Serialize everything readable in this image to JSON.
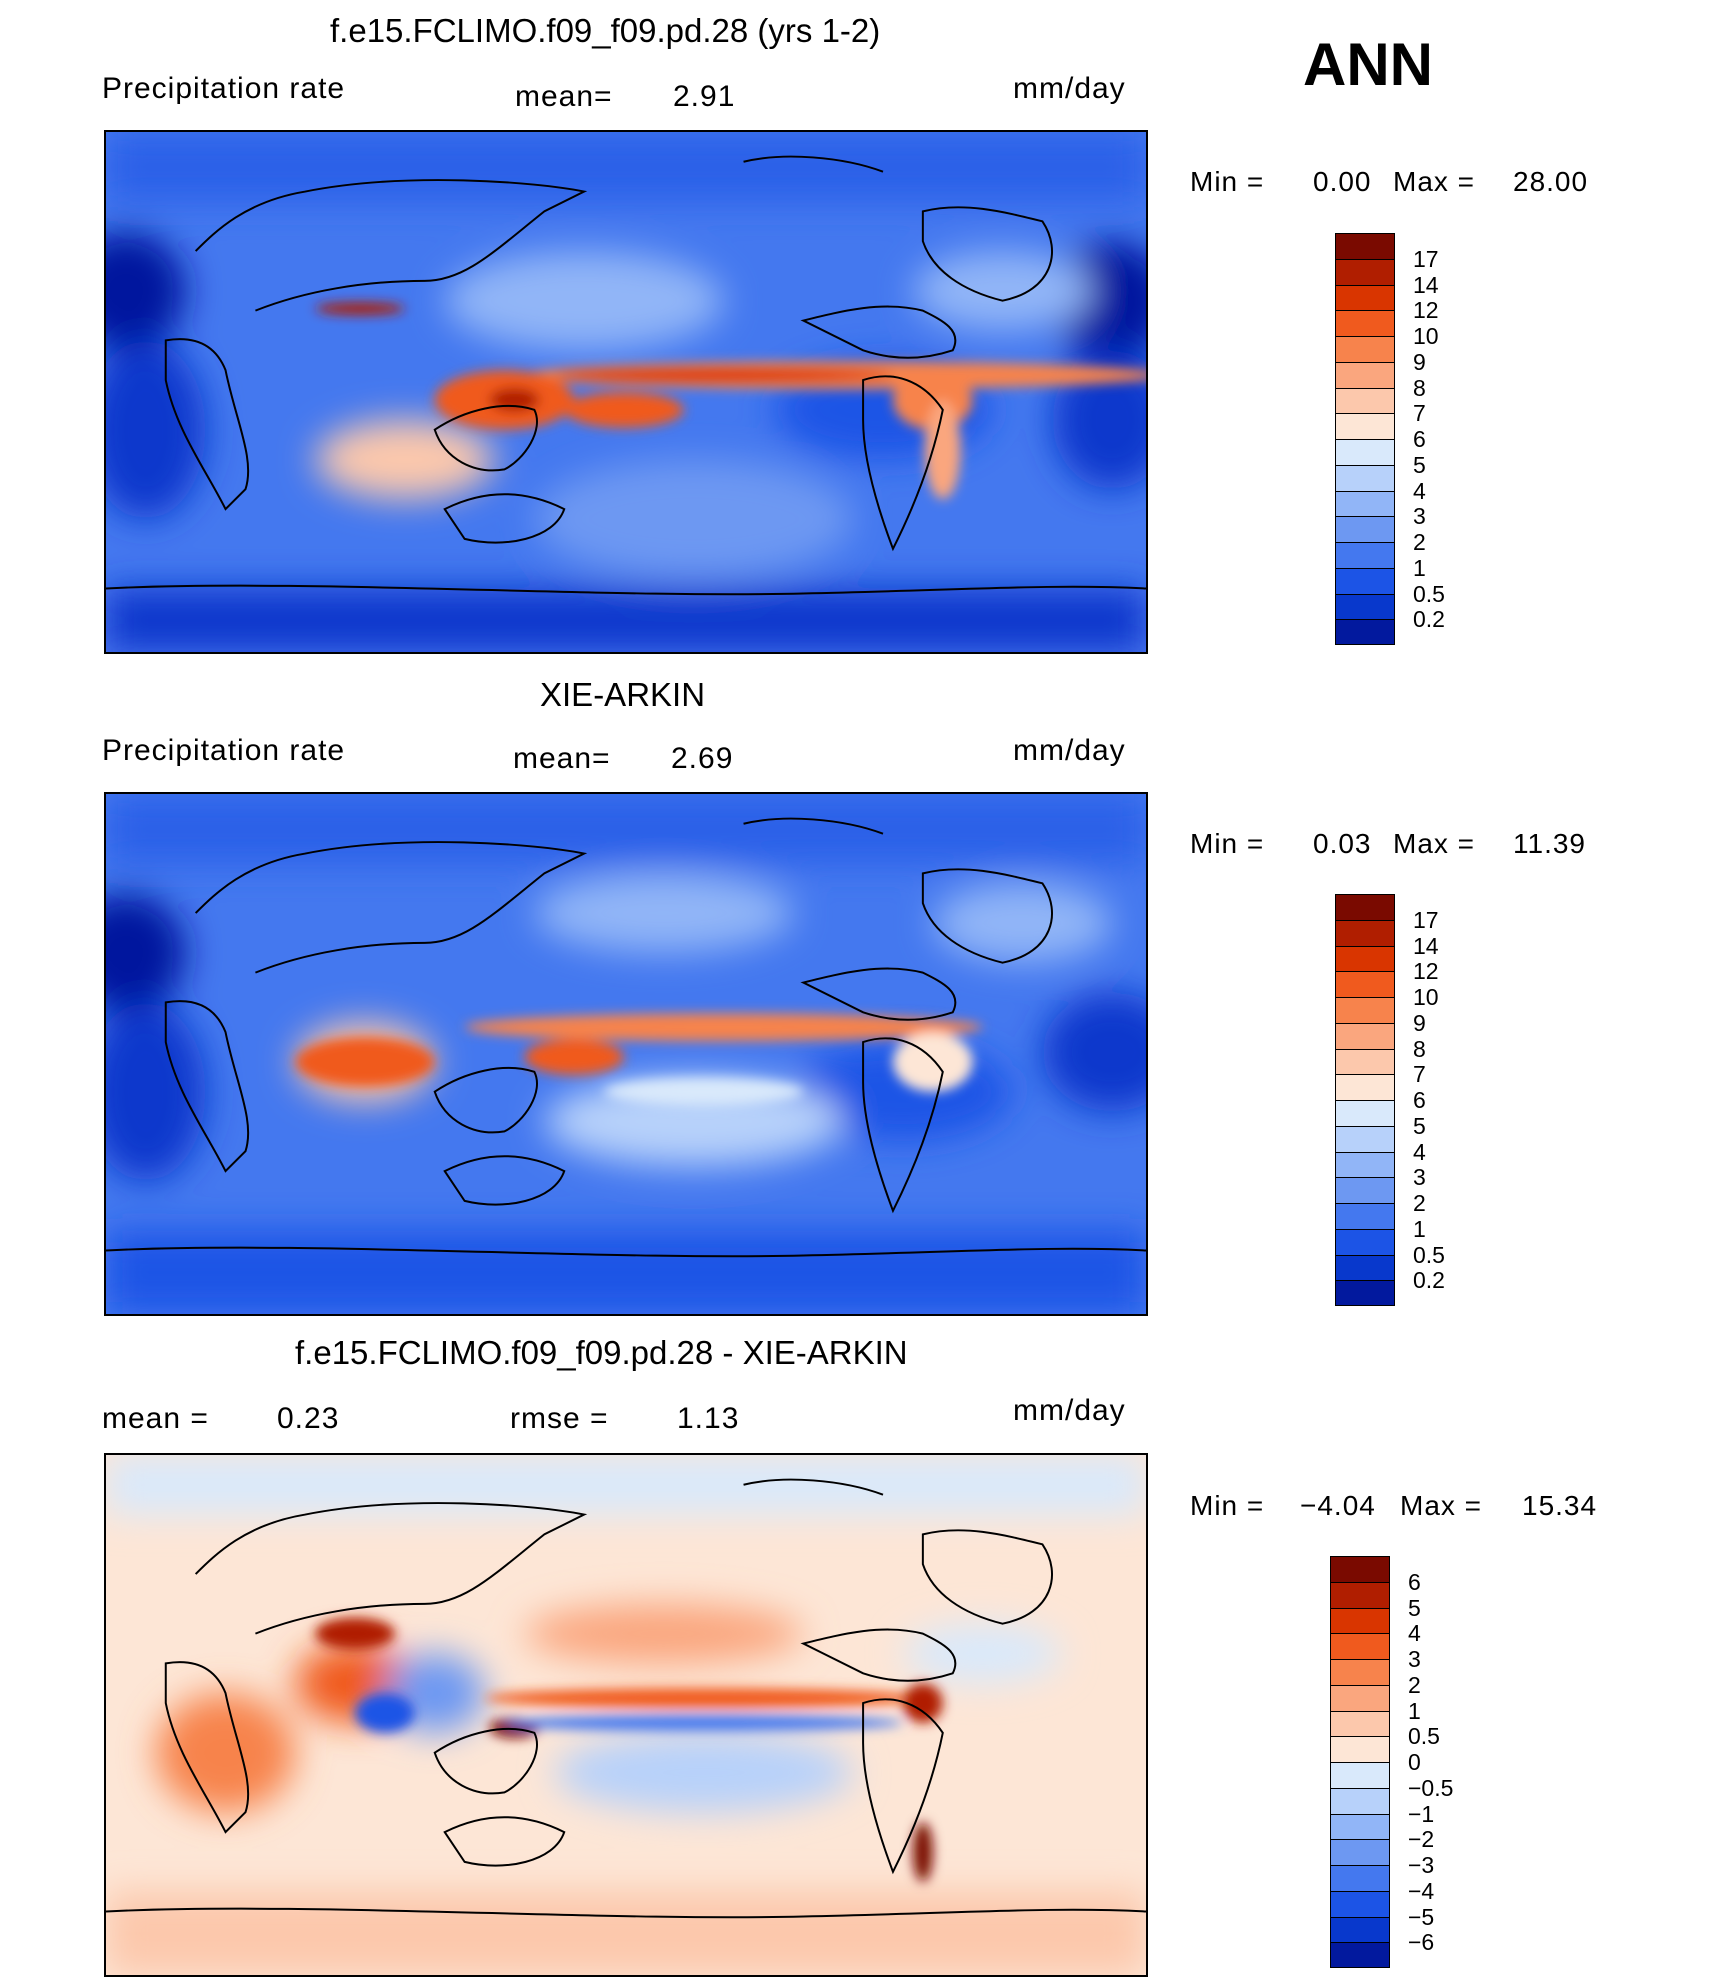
{
  "season": "ANN",
  "panels": [
    {
      "id": "model",
      "title": "f.e15.FCLIMO.f09_f09.pd.28 (yrs 1-2)",
      "left_label": "Precipitation  rate",
      "center_label": "mean=",
      "center_value": "2.91",
      "units": "mm/day",
      "min_label": "Min  =",
      "min_value": "0.00",
      "max_label": "Max  =",
      "max_value": "28.00"
    },
    {
      "id": "obs",
      "title": "XIE-ARKIN",
      "left_label": "Precipitation  rate",
      "center_label": "mean=",
      "center_value": "2.69",
      "units": "mm/day",
      "min_label": "Min  =",
      "min_value": "0.03",
      "max_label": "Max  =",
      "max_value": "11.39"
    },
    {
      "id": "diff",
      "title": "f.e15.FCLIMO.f09_f09.pd.28 - XIE-ARKIN",
      "left_label": "mean  =",
      "left_value": "0.23",
      "center_label": "rmse  =",
      "center_value": "1.13",
      "units": "mm/day",
      "min_label": "Min  =",
      "min_value": "−4.04",
      "max_label": "Max  =",
      "max_value": "15.34"
    }
  ],
  "colorbars": {
    "precip": {
      "labels": [
        "17",
        "14",
        "12",
        "10",
        "9",
        "8",
        "7",
        "6",
        "5",
        "4",
        "3",
        "2",
        "1",
        "0.5",
        "0.2"
      ],
      "colors": [
        "#7a0a00",
        "#b01e00",
        "#d93500",
        "#f05a1e",
        "#f7834c",
        "#faa67e",
        "#fcc8ac",
        "#fde6d6",
        "#d9e9fb",
        "#b7d1fa",
        "#91b5f7",
        "#6d98f2",
        "#4478ef",
        "#1c54e6",
        "#0838cc",
        "#02199e"
      ]
    },
    "diff": {
      "labels": [
        "6",
        "5",
        "4",
        "3",
        "2",
        "1",
        "0.5",
        "0",
        "−0.5",
        "−1",
        "−2",
        "−3",
        "−4",
        "−5",
        "−6"
      ],
      "colors": [
        "#7a0a00",
        "#b01e00",
        "#d93500",
        "#f05a1e",
        "#f7834c",
        "#faa67e",
        "#fcc8ac",
        "#fde6d6",
        "#d9e9fb",
        "#b7d1fa",
        "#91b5f7",
        "#6d98f2",
        "#4478ef",
        "#1c54e6",
        "#0838cc",
        "#02199e"
      ]
    }
  }
}
